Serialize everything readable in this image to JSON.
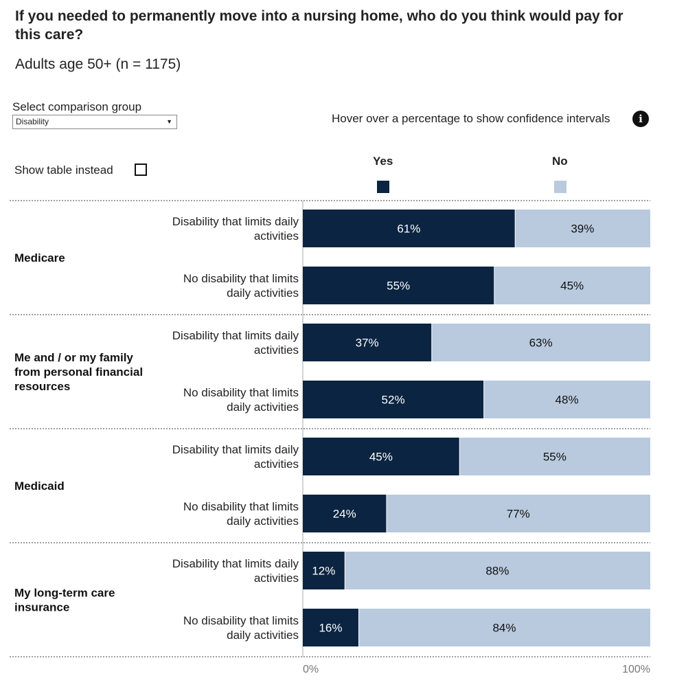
{
  "title": "If you needed to permanently move into a nursing home, who do you think would pay for this care?",
  "subtitle": "Adults age 50+ (n = 1175)",
  "controls": {
    "select_label": "Select comparison group",
    "select_value": "Disability",
    "hover_note": "Hover over a percentage to show confidence intervals",
    "show_table_label": "Show table instead"
  },
  "legend": [
    {
      "label": "Yes",
      "color": "#0b2441"
    },
    {
      "label": "No",
      "color": "#b9cade"
    }
  ],
  "chart_data": {
    "type": "bar",
    "orientation": "horizontal-stacked-100",
    "title": "If you needed to permanently move into a nursing home, who do you think would pay for this care?",
    "subtitle": "Adults age 50+ (n = 1175)",
    "series_names": [
      "Yes",
      "No"
    ],
    "xlim": [
      0,
      100
    ],
    "x_ticks": [
      "0%",
      "100%"
    ],
    "groups": [
      {
        "name": "Medicare",
        "rows": [
          {
            "label": "Disability that limits daily activities",
            "label_lines": [
              "Disability that limits daily",
              "activities"
            ],
            "yes": 61,
            "no": 39
          },
          {
            "label": "No disability that limits daily activities",
            "label_lines": [
              "No disability that limits",
              "daily activities"
            ],
            "yes": 55,
            "no": 45
          }
        ]
      },
      {
        "name": "Me and / or my family from personal financial resources",
        "name_lines": [
          "Me and / or my family",
          "from personal financial",
          "resources"
        ],
        "rows": [
          {
            "label": "Disability that limits daily activities",
            "label_lines": [
              "Disability that limits daily",
              "activities"
            ],
            "yes": 37,
            "no": 63
          },
          {
            "label": "No disability that limits daily activities",
            "label_lines": [
              "No disability that limits",
              "daily activities"
            ],
            "yes": 52,
            "no": 48
          }
        ]
      },
      {
        "name": "Medicaid",
        "rows": [
          {
            "label": "Disability that limits daily activities",
            "label_lines": [
              "Disability that limits daily",
              "activities"
            ],
            "yes": 45,
            "no": 55
          },
          {
            "label": "No disability that limits daily activities",
            "label_lines": [
              "No disability that limits",
              "daily activities"
            ],
            "yes": 24,
            "no": 77
          }
        ]
      },
      {
        "name": "My long-term care insurance",
        "name_lines": [
          "My long-term care",
          "insurance"
        ],
        "rows": [
          {
            "label": "Disability that limits daily activities",
            "label_lines": [
              "Disability that limits daily",
              "activities"
            ],
            "yes": 12,
            "no": 88
          },
          {
            "label": "No disability that limits daily activities",
            "label_lines": [
              "No disability that limits",
              "daily activities"
            ],
            "yes": 16,
            "no": 84
          }
        ]
      }
    ]
  }
}
